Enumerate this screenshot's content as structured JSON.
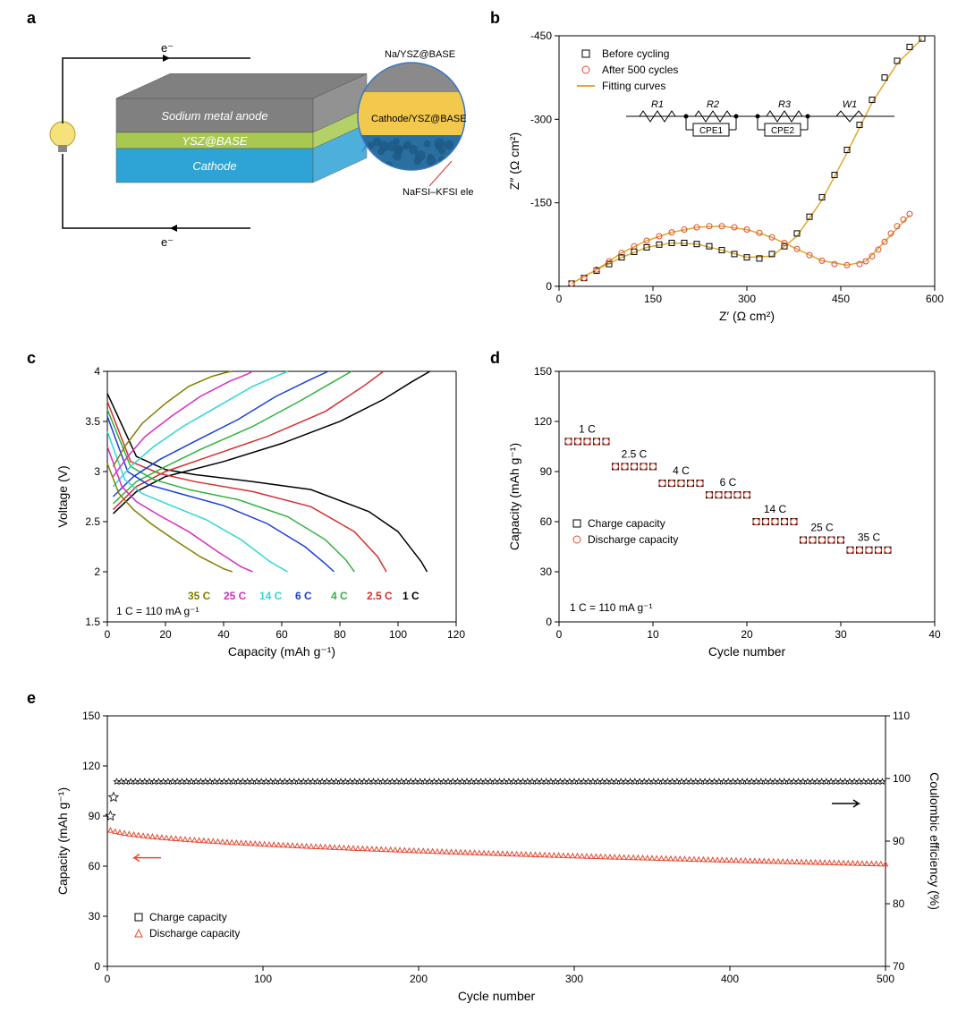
{
  "labels": {
    "a": "a",
    "b": "b",
    "c": "c",
    "d": "d",
    "e": "e"
  },
  "panel_a": {
    "layers": [
      {
        "label": "Sodium metal anode",
        "color": "#808080",
        "text_color": "#ffffff"
      },
      {
        "label": "YSZ@BASE",
        "color": "#a8c84f",
        "text_color": "#ffffff"
      },
      {
        "label": "Cathode",
        "color": "#2ea3d6",
        "text_color": "#ffffff"
      }
    ],
    "electron": "e⁻",
    "callouts": [
      {
        "label": "Na/YSZ@BASE",
        "band_color": "#8a8a8a"
      },
      {
        "label": "Cathode/YSZ@BASE",
        "band_color": "#f2c94c"
      },
      {
        "label": "NaFSI–KFSI electrolyte",
        "band_color": "#2a6fa0"
      }
    ]
  },
  "panel_b": {
    "type": "nyquist",
    "xlabel": "Z′ (Ω cm²)",
    "ylabel": "Z″ (Ω cm²)",
    "xlim": [
      0,
      600
    ],
    "xtick_step": 150,
    "ylim": [
      0,
      -450
    ],
    "ytick_step": -150,
    "background": "#ffffff",
    "axis_color": "#000000",
    "legend": [
      {
        "symbol": "square-open",
        "color": "#000000",
        "label": "Before cycling"
      },
      {
        "symbol": "circle-open",
        "color": "#e34a33",
        "label": "After 500 cycles"
      },
      {
        "symbol": "line",
        "color": "#e0a82e",
        "label": "Fitting curves"
      }
    ],
    "circuit_elements": [
      "R1",
      "R2",
      "CPE1",
      "R3",
      "CPE2",
      "W1"
    ],
    "series": {
      "before": {
        "marker": "square-open",
        "color": "#000000",
        "size": 6,
        "x": [
          20,
          40,
          60,
          80,
          100,
          120,
          140,
          160,
          180,
          200,
          220,
          240,
          260,
          280,
          300,
          320,
          340,
          360,
          380,
          400,
          420,
          440,
          460,
          480,
          500,
          520,
          540,
          560,
          580
        ],
        "y": [
          -5,
          -15,
          -28,
          -40,
          -52,
          -62,
          -70,
          -75,
          -78,
          -78,
          -76,
          -72,
          -65,
          -58,
          -52,
          -50,
          -58,
          -72,
          -95,
          -125,
          -160,
          -200,
          -245,
          -290,
          -335,
          -375,
          -405,
          -430,
          -445
        ]
      },
      "after": {
        "marker": "circle-open",
        "color": "#e34a33",
        "size": 6,
        "x": [
          20,
          40,
          60,
          80,
          100,
          120,
          140,
          160,
          180,
          200,
          220,
          240,
          260,
          280,
          300,
          320,
          340,
          360,
          380,
          400,
          420,
          440,
          460,
          480,
          490,
          500,
          510,
          520,
          530,
          540,
          550,
          560
        ],
        "y": [
          -5,
          -15,
          -30,
          -45,
          -60,
          -72,
          -82,
          -90,
          -97,
          -102,
          -106,
          -108,
          -108,
          -106,
          -102,
          -96,
          -88,
          -78,
          -67,
          -56,
          -46,
          -40,
          -38,
          -40,
          -45,
          -54,
          -66,
          -80,
          -95,
          -108,
          -120,
          -130
        ]
      },
      "fit_before": {
        "color": "#e0a82e",
        "width": 1.5,
        "x": [
          20,
          60,
          100,
          140,
          180,
          220,
          260,
          300,
          340,
          380,
          420,
          460,
          500,
          540,
          580
        ],
        "y": [
          -5,
          -30,
          -52,
          -70,
          -78,
          -76,
          -65,
          -52,
          -54,
          -90,
          -155,
          -240,
          -330,
          -400,
          -445
        ]
      },
      "fit_after": {
        "color": "#e0a82e",
        "width": 1.5,
        "x": [
          20,
          60,
          100,
          140,
          180,
          220,
          260,
          300,
          340,
          380,
          420,
          460,
          490,
          520,
          560
        ],
        "y": [
          -5,
          -30,
          -60,
          -82,
          -97,
          -106,
          -108,
          -102,
          -88,
          -67,
          -46,
          -38,
          -45,
          -80,
          -128
        ]
      }
    }
  },
  "panel_c": {
    "type": "line",
    "xlabel": "Capacity (mAh g⁻¹)",
    "ylabel": "Voltage (V)",
    "xlim": [
      0,
      120
    ],
    "xtick_step": 20,
    "ylim": [
      1.5,
      4.0
    ],
    "ytick_step": 0.5,
    "note": "1 C = 110 mA g⁻¹",
    "rate_labels": [
      {
        "text": "35 C",
        "color": "#808000"
      },
      {
        "text": "25 C",
        "color": "#d62fc0"
      },
      {
        "text": "14 C",
        "color": "#2fd6d6"
      },
      {
        "text": "6 C",
        "color": "#1a3fd6"
      },
      {
        "text": "4 C",
        "color": "#2fb23f"
      },
      {
        "text": "2.5 C",
        "color": "#d62f2f"
      },
      {
        "text": "1 C",
        "color": "#000000"
      }
    ],
    "series": [
      {
        "name": "1C",
        "color": "#000000",
        "width": 1.5,
        "discharge": {
          "x": [
            0,
            10,
            20,
            30,
            50,
            70,
            90,
            100,
            108,
            110
          ],
          "y": [
            3.78,
            3.15,
            3.02,
            2.97,
            2.9,
            2.82,
            2.6,
            2.4,
            2.1,
            2.0
          ]
        },
        "charge": {
          "x": [
            2,
            10,
            20,
            40,
            60,
            80,
            95,
            105,
            111
          ],
          "y": [
            2.58,
            2.8,
            2.95,
            3.1,
            3.28,
            3.5,
            3.72,
            3.9,
            4.0
          ]
        }
      },
      {
        "name": "2.5C",
        "color": "#d62f2f",
        "width": 1.5,
        "discharge": {
          "x": [
            0,
            8,
            18,
            30,
            50,
            70,
            85,
            93,
            96
          ],
          "y": [
            3.7,
            3.1,
            2.98,
            2.9,
            2.8,
            2.65,
            2.4,
            2.15,
            2.0
          ]
        },
        "charge": {
          "x": [
            2,
            10,
            20,
            35,
            55,
            75,
            88,
            95
          ],
          "y": [
            2.62,
            2.85,
            3.0,
            3.15,
            3.35,
            3.6,
            3.85,
            4.0
          ]
        }
      },
      {
        "name": "4C",
        "color": "#2fb23f",
        "width": 1.5,
        "discharge": {
          "x": [
            0,
            8,
            16,
            28,
            45,
            62,
            75,
            82,
            85
          ],
          "y": [
            3.62,
            3.05,
            2.92,
            2.82,
            2.72,
            2.55,
            2.32,
            2.12,
            2.0
          ]
        },
        "charge": {
          "x": [
            2,
            10,
            20,
            32,
            50,
            66,
            78,
            84
          ],
          "y": [
            2.68,
            2.9,
            3.05,
            3.22,
            3.45,
            3.7,
            3.9,
            4.0
          ]
        }
      },
      {
        "name": "6C",
        "color": "#1a3fd6",
        "width": 1.5,
        "discharge": {
          "x": [
            0,
            7,
            14,
            25,
            40,
            55,
            68,
            75,
            78
          ],
          "y": [
            3.55,
            3.0,
            2.87,
            2.78,
            2.66,
            2.48,
            2.25,
            2.08,
            2.0
          ]
        },
        "charge": {
          "x": [
            2,
            9,
            18,
            30,
            45,
            58,
            70,
            76
          ],
          "y": [
            2.75,
            2.95,
            3.12,
            3.3,
            3.52,
            3.75,
            3.92,
            4.0
          ]
        }
      },
      {
        "name": "14C",
        "color": "#2fd6d6",
        "width": 1.5,
        "discharge": {
          "x": [
            0,
            6,
            12,
            22,
            34,
            46,
            56,
            62
          ],
          "y": [
            3.4,
            2.92,
            2.78,
            2.66,
            2.52,
            2.32,
            2.1,
            2.0
          ]
        },
        "charge": {
          "x": [
            2,
            8,
            16,
            26,
            38,
            50,
            58,
            62
          ],
          "y": [
            2.85,
            3.05,
            3.25,
            3.45,
            3.65,
            3.85,
            3.95,
            4.0
          ]
        }
      },
      {
        "name": "25C",
        "color": "#d62fc0",
        "width": 1.5,
        "discharge": {
          "x": [
            0,
            5,
            10,
            18,
            28,
            38,
            46,
            50
          ],
          "y": [
            3.25,
            2.85,
            2.7,
            2.56,
            2.4,
            2.2,
            2.05,
            2.0
          ]
        },
        "charge": {
          "x": [
            2,
            7,
            13,
            22,
            32,
            42,
            48,
            50
          ],
          "y": [
            2.95,
            3.15,
            3.35,
            3.55,
            3.75,
            3.9,
            3.97,
            4.0
          ]
        }
      },
      {
        "name": "35C",
        "color": "#808000",
        "width": 1.5,
        "discharge": {
          "x": [
            0,
            4,
            9,
            15,
            24,
            32,
            40,
            43
          ],
          "y": [
            3.08,
            2.78,
            2.62,
            2.48,
            2.3,
            2.15,
            2.03,
            2.0
          ]
        },
        "charge": {
          "x": [
            2,
            6,
            12,
            20,
            28,
            36,
            41,
            43
          ],
          "y": [
            3.05,
            3.25,
            3.48,
            3.68,
            3.85,
            3.95,
            3.99,
            4.0
          ]
        }
      }
    ]
  },
  "panel_d": {
    "type": "scatter",
    "xlabel": "Cycle number",
    "ylabel": "Capacity (mAh g⁻¹)",
    "xlim": [
      0,
      40
    ],
    "xtick_step": 10,
    "ylim": [
      0,
      150
    ],
    "ytick_step": 30,
    "note": "1 C = 110 mA g⁻¹",
    "legend": [
      {
        "symbol": "square-open",
        "color": "#000000",
        "label": "Charge capacity"
      },
      {
        "symbol": "circle-open",
        "color": "#e34a33",
        "label": "Discharge capacity"
      }
    ],
    "groups": [
      {
        "label": "1 C",
        "cycles": [
          1,
          2,
          3,
          4,
          5
        ],
        "cap": 108
      },
      {
        "label": "2.5 C",
        "cycles": [
          6,
          7,
          8,
          9,
          10
        ],
        "cap": 93
      },
      {
        "label": "4 C",
        "cycles": [
          11,
          12,
          13,
          14,
          15
        ],
        "cap": 83
      },
      {
        "label": "6 C",
        "cycles": [
          16,
          17,
          18,
          19,
          20
        ],
        "cap": 76
      },
      {
        "label": "14 C",
        "cycles": [
          21,
          22,
          23,
          24,
          25
        ],
        "cap": 60
      },
      {
        "label": "25 C",
        "cycles": [
          26,
          27,
          28,
          29,
          30
        ],
        "cap": 49
      },
      {
        "label": "35 C",
        "cycles": [
          31,
          32,
          33,
          34,
          35
        ],
        "cap": 43
      }
    ]
  },
  "panel_e": {
    "type": "dual-axis",
    "xlabel": "Cycle number",
    "ylabel_left": "Capacity (mAh g⁻¹)",
    "ylabel_right": "Coulombic efficiency (%)",
    "xlim": [
      0,
      500
    ],
    "xtick_step": 100,
    "ylim_left": [
      0,
      150
    ],
    "ytick_left_step": 30,
    "ylim_right": [
      70,
      110
    ],
    "ytick_right_step": 10,
    "legend": [
      {
        "symbol": "square-open",
        "color": "#000000",
        "label": "Charge capacity"
      },
      {
        "symbol": "triangle-open",
        "color": "#e34a33",
        "label": "Discharge capacity"
      }
    ],
    "capacity": {
      "color": "#e34a33",
      "start": 83,
      "mid": 65,
      "end": 59
    },
    "ce": {
      "color": "#000000",
      "first": 94,
      "second": 97,
      "plateau": 99.5
    }
  }
}
